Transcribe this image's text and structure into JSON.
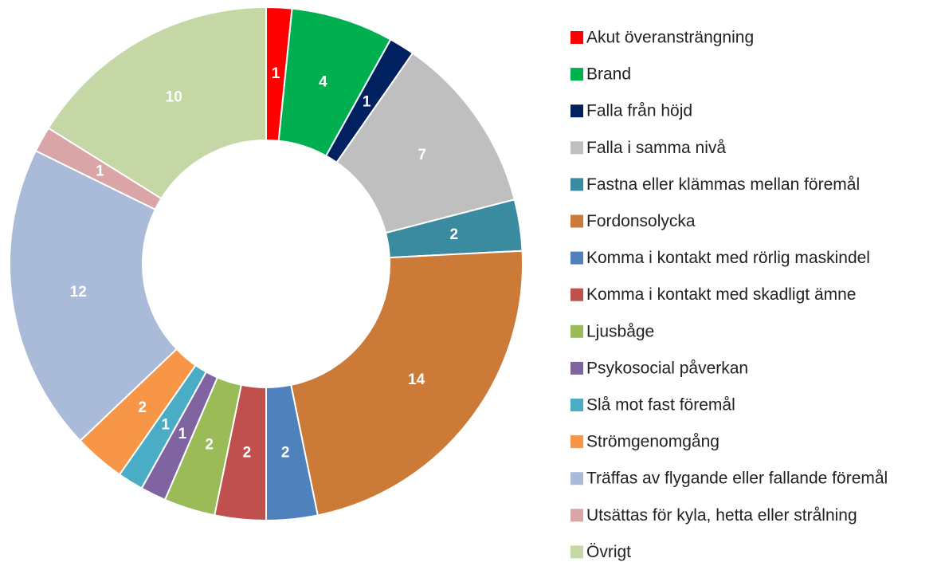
{
  "chart_data": {
    "type": "donut",
    "categories": [
      "Akut överansträngning",
      "Brand",
      "Falla från höjd",
      "Falla i samma nivå",
      "Fastna eller klämmas mellan föremål",
      "Fordonsolycka",
      "Komma i kontakt med rörlig maskindel",
      "Komma i kontakt med skadligt ämne",
      "Ljusbåge",
      "Psykosocial påverkan",
      "Slå mot fast föremål",
      "Strömgenomgång",
      "Träffas av flygande eller fallande föremål",
      "Utsättas för kyla, hetta eller strålning",
      "Övrigt"
    ],
    "values": [
      1,
      4,
      1,
      7,
      2,
      14,
      2,
      2,
      2,
      1,
      1,
      2,
      12,
      1,
      10
    ],
    "colors": [
      "#ff0000",
      "#00b050",
      "#002060",
      "#bfbfbf",
      "#3a8ba0",
      "#cc7a38",
      "#4f81bd",
      "#c0504d",
      "#9bbb59",
      "#8064a2",
      "#4bacc6",
      "#f79646",
      "#aabad9",
      "#d9a5a6",
      "#c4d7a4"
    ],
    "legend": "right"
  }
}
